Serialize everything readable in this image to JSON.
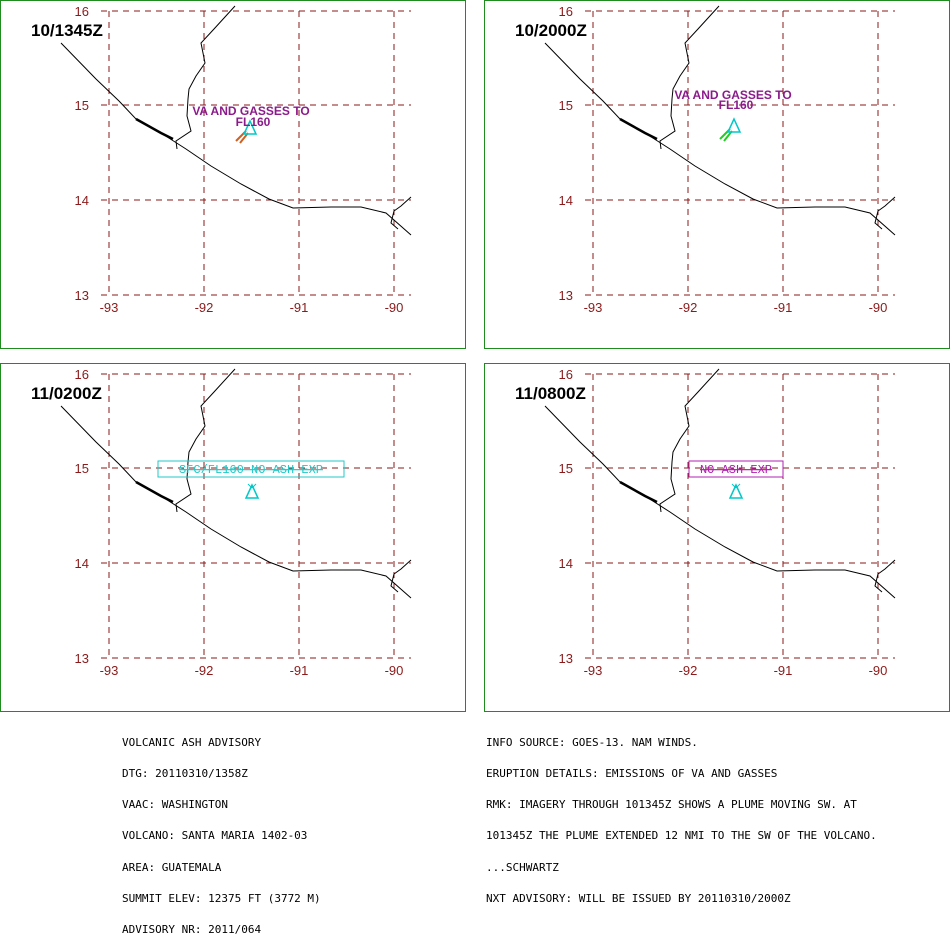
{
  "colors": {
    "panel_border": "#1e8c1e",
    "grid": "#8b1a1a",
    "tick_label": "#8b1a1a",
    "coastline": "#000000",
    "plume_text_magenta": "#8b1a8b",
    "volcano_cyan": "#00c8c8",
    "plume_green": "#22cc22",
    "plume_orange": "#d06020",
    "box_cyan": "#22c8c8",
    "box_magenta": "#b020b0"
  },
  "map": {
    "lon_ticks": [
      "-93",
      "-92",
      "-91",
      "-90"
    ],
    "lat_ticks": [
      "16",
      "15",
      "14",
      "13"
    ]
  },
  "panels": [
    {
      "time": "10/1345Z",
      "annotation": [
        "VA AND GASSES TO",
        "FL160"
      ],
      "annotation_style": "plume",
      "plume_color": "orange"
    },
    {
      "time": "10/2000Z",
      "annotation": [
        "VA AND GASSES TO",
        "FL160"
      ],
      "annotation_style": "plume",
      "plume_color": "green"
    },
    {
      "time": "11/0200Z",
      "annotation": [
        "SFC/FL160 NO ASH EXP"
      ],
      "annotation_style": "box-cyan"
    },
    {
      "time": "11/0800Z",
      "annotation": [
        "NO ASH EXP"
      ],
      "annotation_style": "box-magenta"
    }
  ],
  "advisory_left": [
    "VOLCANIC ASH ADVISORY",
    "DTG: 20110310/1358Z",
    "VAAC: WASHINGTON",
    "VOLCANO: SANTA MARIA 1402-03",
    "AREA: GUATEMALA",
    "SUMMIT ELEV: 12375 FT (3772 M)",
    "ADVISORY NR: 2011/064"
  ],
  "advisory_right": [
    "INFO SOURCE: GOES-13. NAM WINDS.",
    "ERUPTION DETAILS: EMISSIONS OF VA AND GASSES",
    "RMK: IMAGERY THROUGH 101345Z SHOWS A PLUME MOVING SW. AT",
    "101345Z THE PLUME EXTENDED 12 NMI TO THE SW OF THE VOLCANO.",
    "...SCHWARTZ",
    "NXT ADVISORY: WILL BE ISSUED BY 20110310/2000Z"
  ]
}
